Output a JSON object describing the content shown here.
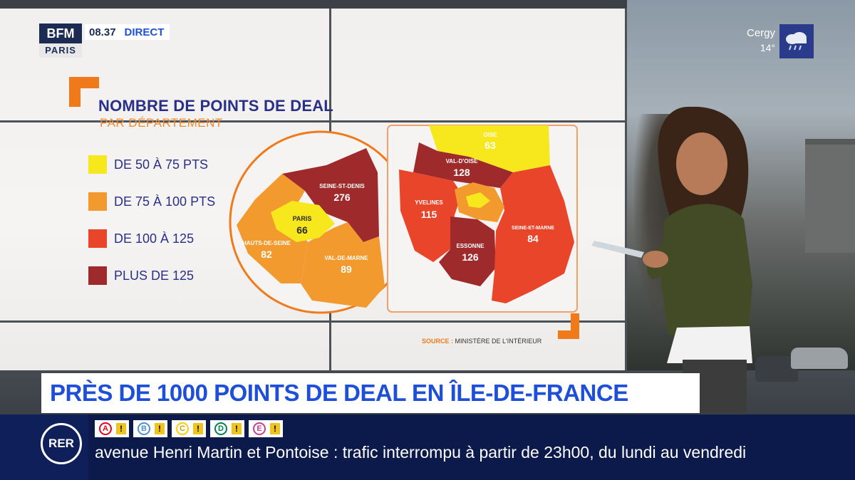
{
  "broadcast": {
    "logo_top": "BFM",
    "logo_bottom": "PARIS",
    "clock": "08.37",
    "live_label": "DIRECT",
    "weather": {
      "city": "Cergy",
      "temperature": "14°",
      "icon": "cloud-rain-icon"
    },
    "headline": "PRÈS DE 1000 POINTS DE DEAL EN ÎLE-DE-FRANCE",
    "ticker": {
      "badge": "RER",
      "lines": [
        {
          "letter": "A",
          "color": "#e3051b",
          "status": "warning"
        },
        {
          "letter": "B",
          "color": "#5291ce",
          "status": "warning"
        },
        {
          "letter": "C",
          "color": "#ffce00",
          "status": "warning"
        },
        {
          "letter": "D",
          "color": "#00814f",
          "status": "warning"
        },
        {
          "letter": "E",
          "color": "#c04191",
          "status": "warning"
        }
      ],
      "text": "avenue Henri Martin et Pontoise : trafic interrompu à partir de 23h00, du lundi au vendredi"
    }
  },
  "infographic": {
    "title": "NOMBRE DE POINTS DE DEAL",
    "subtitle": "PAR DÉPARTEMENT",
    "legend": [
      {
        "label": "DE 50 À 75 PTS",
        "color": "#f7e81e"
      },
      {
        "label": "DE 75 À 100 PTS",
        "color": "#f39a2e"
      },
      {
        "label": "DE 100 À 125",
        "color": "#e8452a"
      },
      {
        "label": "PLUS DE 125",
        "color": "#9e2a2b"
      }
    ],
    "departments": [
      {
        "name": "PARIS",
        "value": "66",
        "color": "#f7e81e"
      },
      {
        "name": "SEINE-ST-DENIS",
        "value": "276",
        "color": "#9e2a2b"
      },
      {
        "name": "HAUTS-DE-SEINE",
        "value": "82",
        "color": "#f39a2e"
      },
      {
        "name": "VAL-DE-MARNE",
        "value": "89",
        "color": "#f39a2e"
      },
      {
        "name": "OISE",
        "value": "63",
        "color": "#f7e81e"
      },
      {
        "name": "VAL-D'OISE",
        "value": "128",
        "color": "#9e2a2b"
      },
      {
        "name": "YVELINES",
        "value": "115",
        "color": "#e8452a"
      },
      {
        "name": "ESSONNE",
        "value": "126",
        "color": "#9e2a2b"
      },
      {
        "name": "SEINE-ET-MARNE",
        "value": "84",
        "color": "#f39a2e"
      }
    ],
    "source_label": "SOURCE :",
    "source_value": "MINISTÈRE DE L'INTÉRIEUR",
    "accent_color": "#f07a1a",
    "title_color": "#2a2f88"
  }
}
